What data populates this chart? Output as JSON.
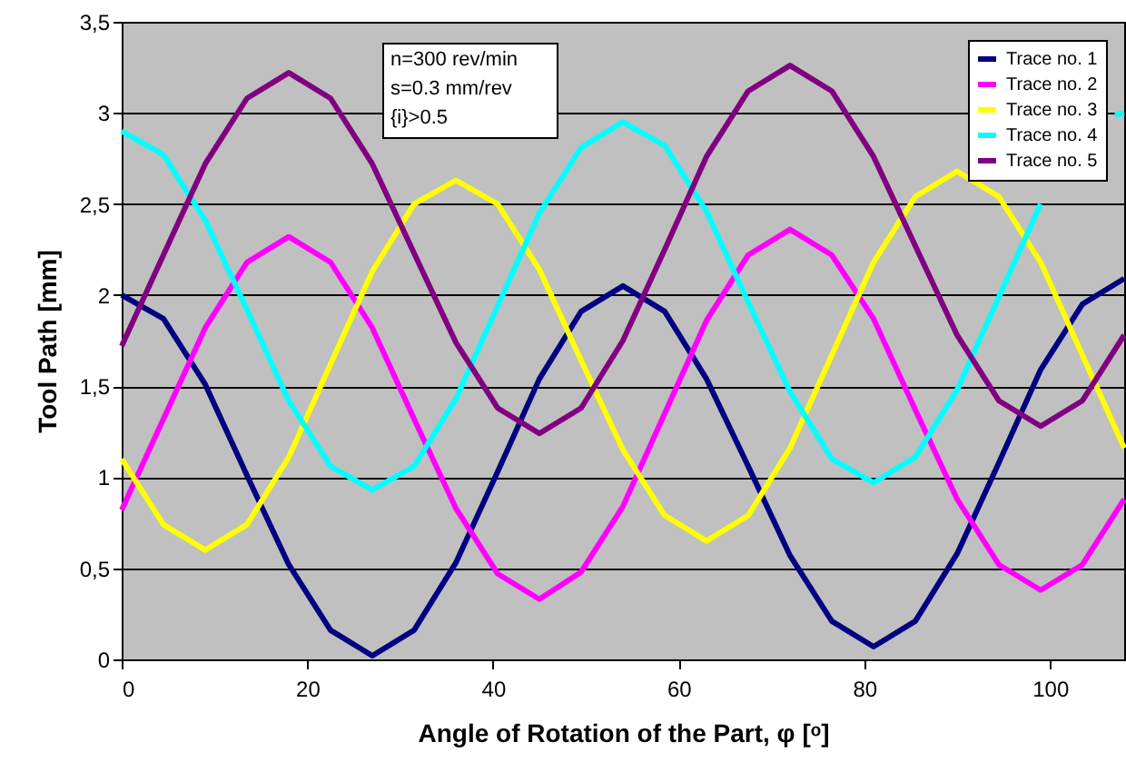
{
  "chart_data": {
    "type": "line",
    "xlabel": "Angle of Rotation of the Part, φ [ᵒ]",
    "ylabel": "Tool Path [mm]",
    "annotations": [
      "n=300 rev/min",
      "s=0.3 mm/rev",
      "{i}>0.5"
    ],
    "x": [
      0,
      4.5,
      9,
      13.5,
      18,
      22.5,
      27,
      31.5,
      36,
      40.5,
      45,
      49.5,
      54,
      58.5,
      63,
      67.5,
      72,
      76.5,
      81,
      85.5,
      90,
      94.5,
      99,
      103.5,
      108
    ],
    "series": [
      {
        "name": "Trace no. 1",
        "color": "#000080",
        "values": [
          2.0,
          1.87,
          1.51,
          1.01,
          0.52,
          0.16,
          0.02,
          0.16,
          0.53,
          1.03,
          1.54,
          1.91,
          2.05,
          1.91,
          1.54,
          1.06,
          0.57,
          0.21,
          0.07,
          0.21,
          0.58,
          1.08,
          1.59,
          1.95,
          2.09
        ]
      },
      {
        "name": "Trace no. 2",
        "color": "#ff00ff",
        "values": [
          0.82,
          1.32,
          1.82,
          2.18,
          2.32,
          2.18,
          1.82,
          1.32,
          0.83,
          0.47,
          0.33,
          0.48,
          0.84,
          1.35,
          1.86,
          2.22,
          2.36,
          2.22,
          1.87,
          1.37,
          0.88,
          0.52,
          0.38,
          0.52,
          0.88
        ]
      },
      {
        "name": "Trace no. 3",
        "color": "#ffff00",
        "values": [
          1.1,
          0.74,
          0.6,
          0.74,
          1.11,
          1.62,
          2.13,
          2.5,
          2.63,
          2.5,
          2.14,
          1.64,
          1.15,
          0.79,
          0.65,
          0.79,
          1.16,
          1.67,
          2.18,
          2.54,
          2.68,
          2.54,
          2.18,
          1.67,
          1.16
        ]
      },
      {
        "name": "Trace no. 4",
        "color": "#00ffff",
        "x": [
          0,
          4.5,
          9,
          13.5,
          18,
          22.5,
          27,
          31.5,
          36,
          40.5,
          45,
          49.5,
          54,
          58.5,
          63,
          67.5,
          72,
          76.5,
          81,
          85.5,
          90,
          94.5,
          99,
          103.5,
          107,
          108
        ],
        "values": [
          2.9,
          2.77,
          2.41,
          1.92,
          1.42,
          1.06,
          0.93,
          1.06,
          1.43,
          1.94,
          2.45,
          2.81,
          2.95,
          2.82,
          2.46,
          1.96,
          1.47,
          1.1,
          0.97,
          1.11,
          1.48,
          1.99,
          2.5,
          null,
          2.99,
          3.0
        ]
      },
      {
        "name": "Trace no. 5",
        "color": "#800080",
        "values": [
          1.72,
          2.22,
          2.72,
          3.08,
          3.22,
          3.08,
          2.72,
          2.23,
          1.74,
          1.38,
          1.24,
          1.38,
          1.75,
          2.25,
          2.76,
          3.12,
          3.26,
          3.12,
          2.76,
          2.27,
          1.78,
          1.42,
          1.28,
          1.42,
          1.78
        ]
      }
    ],
    "xlim": [
      0,
      108
    ],
    "xticks": [
      0,
      20,
      40,
      60,
      80,
      100
    ],
    "ylim": [
      0,
      3.5
    ],
    "yticks": [
      0,
      {
        "value": 0.5,
        "label": "0,5"
      },
      1,
      {
        "value": 1.5,
        "label": "1,5"
      },
      2,
      {
        "value": 2.5,
        "label": "2,5"
      },
      3,
      {
        "value": 3.5,
        "label": "3,5"
      }
    ],
    "grid": "y",
    "legend": "top right",
    "marker": "none",
    "line_style": "solid"
  }
}
